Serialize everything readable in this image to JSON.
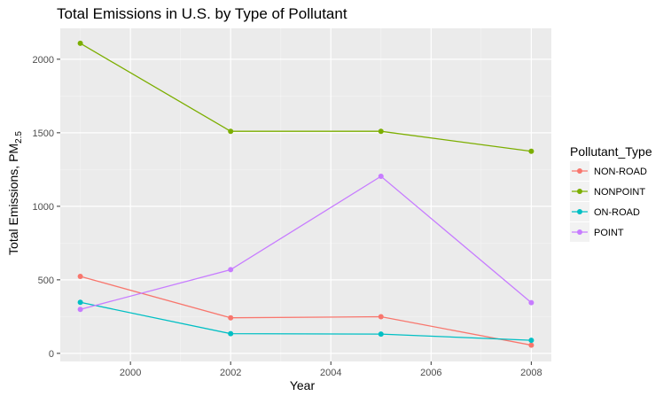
{
  "chart_data": {
    "type": "line",
    "title": "Total Emissions in U.S. by Type of Pollutant",
    "xlabel": "Year",
    "ylabel": {
      "main": "Total Emissions, PM",
      "sub": "2.5"
    },
    "x": [
      1999,
      2002,
      2005,
      2008
    ],
    "xlim": [
      1998.6,
      2008.4
    ],
    "ylim": [
      -55,
      2210
    ],
    "xticks": [
      2000,
      2002,
      2004,
      2006,
      2008
    ],
    "yticks": [
      0,
      500,
      1000,
      1500,
      2000
    ],
    "grid": true,
    "legend_title": "Pollutant_Type",
    "legend_position": "right",
    "series": [
      {
        "name": "NON-ROAD",
        "color": "#F8766D",
        "values": [
          523,
          242,
          249,
          56
        ]
      },
      {
        "name": "NONPOINT",
        "color": "#7CAE00",
        "values": [
          2108,
          1510,
          1510,
          1374
        ]
      },
      {
        "name": "ON-ROAD",
        "color": "#00BFC4",
        "values": [
          347,
          134,
          131,
          89
        ]
      },
      {
        "name": "POINT",
        "color": "#C77CFF",
        "values": [
          299,
          569,
          1204,
          345
        ]
      }
    ]
  }
}
